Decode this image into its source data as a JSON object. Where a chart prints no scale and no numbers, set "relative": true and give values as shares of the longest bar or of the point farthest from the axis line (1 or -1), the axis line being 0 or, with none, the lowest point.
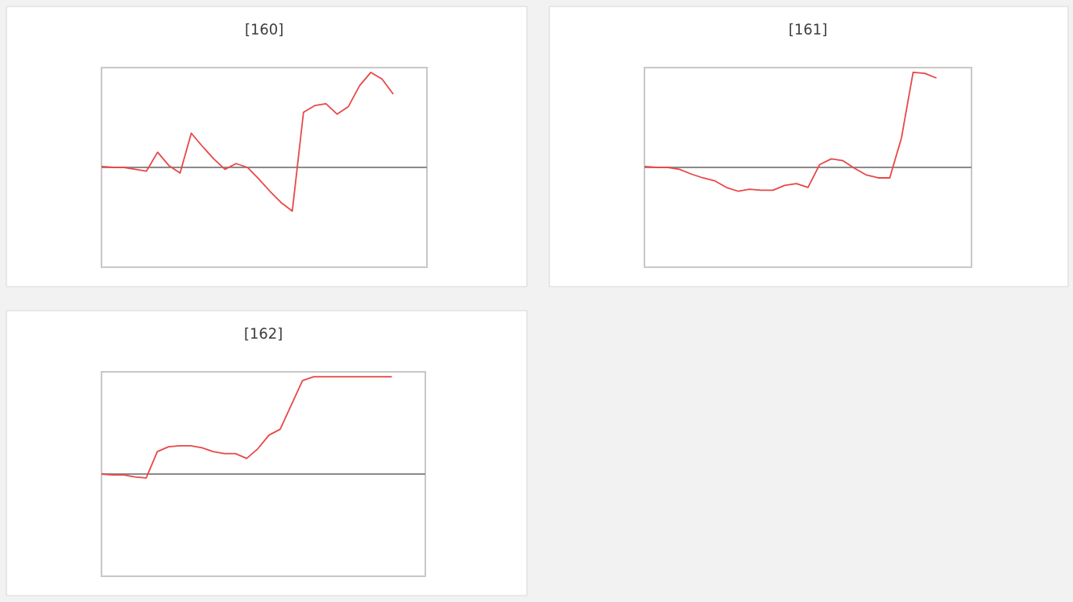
{
  "chart_data": [
    {
      "type": "line",
      "title": "[160]",
      "relative": true,
      "categories": [
        null,
        null,
        null,
        null,
        null,
        null,
        null,
        null,
        null,
        null,
        null,
        null,
        null,
        null,
        null,
        null,
        null,
        null,
        null,
        null,
        null,
        null,
        null,
        null,
        null,
        null,
        null
      ],
      "series": [
        {
          "color": "#e8494a",
          "values": [
            0.01,
            0,
            0,
            -0.02,
            -0.04,
            0.16,
            0.02,
            -0.06,
            0.36,
            0.22,
            0.09,
            -0.02,
            0.04,
            0,
            -0.12,
            -0.25,
            -0.37,
            -0.46,
            0.58,
            0.65,
            0.67,
            0.56,
            0.64,
            0.86,
            1,
            0.93,
            0.77
          ]
        }
      ]
    },
    {
      "type": "line",
      "title": "[161]",
      "relative": true,
      "categories": [
        null,
        null,
        null,
        null,
        null,
        null,
        null,
        null,
        null,
        null,
        null,
        null,
        null,
        null,
        null,
        null,
        null,
        null,
        null,
        null,
        null,
        null,
        null,
        null,
        null,
        null
      ],
      "series": [
        {
          "color": "#e8494a",
          "values": [
            0.01,
            0,
            0,
            -0.02,
            -0.07,
            -0.11,
            -0.14,
            -0.21,
            -0.25,
            -0.23,
            -0.24,
            -0.24,
            -0.19,
            -0.17,
            -0.21,
            0.03,
            0.09,
            0.07,
            -0.01,
            -0.08,
            -0.11,
            -0.11,
            0.31,
            1,
            0.99,
            0.94
          ]
        }
      ]
    },
    {
      "type": "line",
      "title": "[162]",
      "relative": true,
      "categories": [
        null,
        null,
        null,
        null,
        null,
        null,
        null,
        null,
        null,
        null,
        null,
        null,
        null,
        null,
        null,
        null,
        null,
        null,
        null,
        null,
        null,
        null,
        null,
        null,
        null,
        null,
        null
      ],
      "series": [
        {
          "color": "#e8494a",
          "values": [
            0,
            -0.01,
            -0.01,
            -0.03,
            -0.04,
            0.23,
            0.28,
            0.29,
            0.29,
            0.27,
            0.23,
            0.21,
            0.21,
            0.16,
            0.26,
            0.4,
            0.46,
            0.71,
            0.96,
            1,
            1,
            1,
            1,
            1,
            1,
            1,
            1
          ]
        }
      ]
    }
  ]
}
